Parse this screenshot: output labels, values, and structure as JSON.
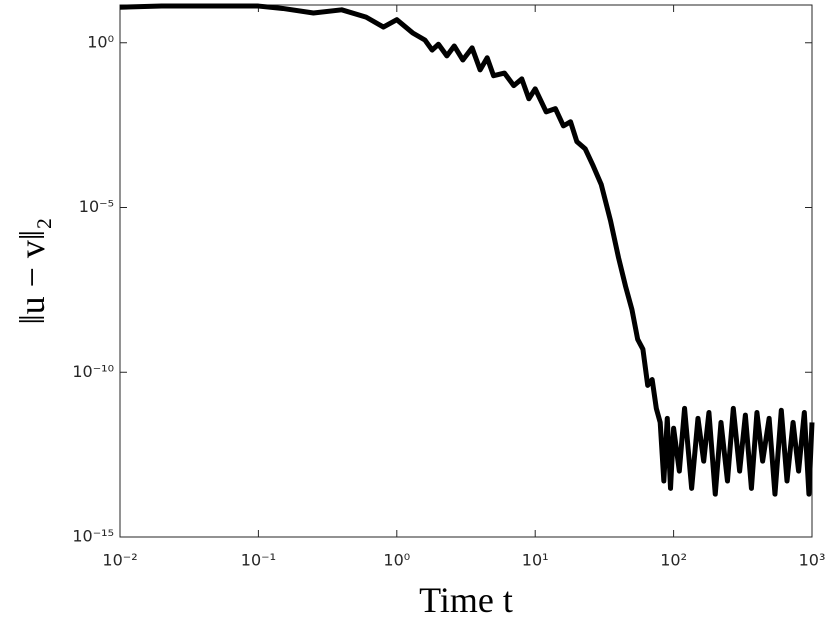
{
  "chart_data": {
    "type": "line",
    "xlabel": "Time t",
    "ylabel": "‖u − v‖₂",
    "xscale": "log",
    "yscale": "log",
    "color": "#000000",
    "xlim": [
      0.01,
      1000
    ],
    "ylim": [
      1e-15,
      14
    ],
    "xticks": [
      {
        "value": 0.01,
        "label": "10⁻²"
      },
      {
        "value": 0.1,
        "label": "10⁻¹"
      },
      {
        "value": 1,
        "label": "10⁰"
      },
      {
        "value": 10,
        "label": "10¹"
      },
      {
        "value": 100,
        "label": "10²"
      },
      {
        "value": 1000,
        "label": "10³"
      }
    ],
    "yticks": [
      {
        "value": 1e-15,
        "label": "10⁻¹⁵"
      },
      {
        "value": 1e-10,
        "label": "10⁻¹⁰"
      },
      {
        "value": 1e-05,
        "label": "10⁻⁵"
      },
      {
        "value": 1,
        "label": "10⁰"
      }
    ],
    "x": [
      0.01,
      0.02,
      0.05,
      0.1,
      0.15,
      0.25,
      0.4,
      0.6,
      0.8,
      1,
      1.3,
      1.6,
      1.8,
      2,
      2.3,
      2.6,
      3,
      3.5,
      4,
      4.5,
      5,
      6,
      7,
      8,
      9,
      10,
      12,
      14,
      16,
      18,
      20,
      23,
      26,
      30,
      35,
      40,
      45,
      50,
      55,
      60,
      65,
      70,
      75,
      80,
      85,
      90,
      95,
      100,
      110,
      120,
      135,
      150,
      165,
      180,
      200,
      220,
      245,
      270,
      300,
      330,
      365,
      400,
      440,
      490,
      540,
      600,
      660,
      730,
      800,
      880,
      950,
      1000
    ],
    "values": [
      12,
      13,
      13,
      13,
      11,
      8,
      10,
      6,
      3,
      5,
      2,
      1.2,
      0.6,
      0.9,
      0.4,
      0.8,
      0.3,
      0.7,
      0.15,
      0.35,
      0.1,
      0.12,
      0.05,
      0.08,
      0.02,
      0.04,
      0.008,
      0.01,
      0.003,
      0.004,
      0.001,
      0.0006,
      0.0002,
      5e-05,
      4e-06,
      3e-07,
      4e-08,
      8e-09,
      1e-09,
      5e-10,
      4e-11,
      6e-11,
      8e-12,
      3e-12,
      5e-14,
      4e-12,
      3e-14,
      2e-12,
      1e-13,
      8e-12,
      3e-14,
      4e-12,
      2e-13,
      6e-12,
      2e-14,
      3e-12,
      5e-14,
      8e-12,
      1e-13,
      5e-12,
      3e-14,
      6e-12,
      2e-13,
      4e-12,
      2e-14,
      7e-12,
      5e-14,
      3e-12,
      1e-13,
      6e-12,
      2e-14,
      3e-12
    ]
  }
}
